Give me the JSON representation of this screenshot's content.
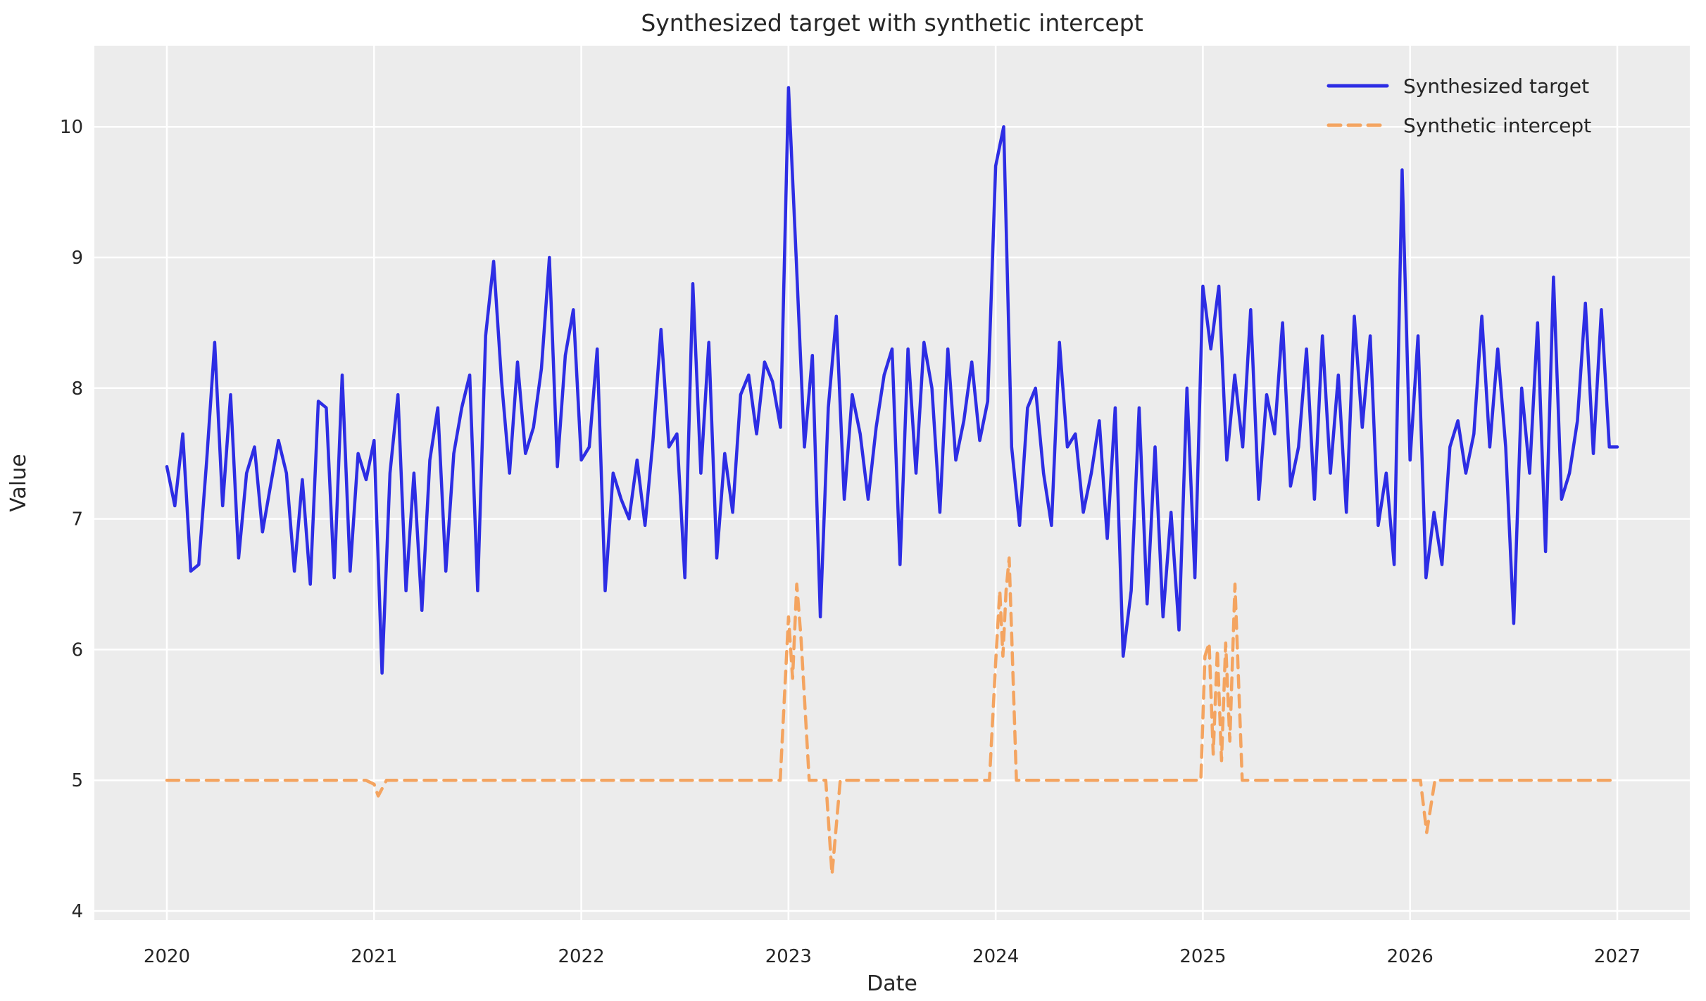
{
  "chart_data": {
    "type": "line",
    "title": "Synthesized target with synthetic intercept",
    "xlabel": "Date",
    "ylabel": "Value",
    "xlim": [
      2019.65,
      2027.35
    ],
    "ylim": [
      3.93,
      10.62
    ],
    "xticks": [
      2020,
      2021,
      2022,
      2023,
      2024,
      2025,
      2026,
      2027
    ],
    "yticks": [
      4,
      5,
      6,
      7,
      8,
      9,
      10
    ],
    "grid": true,
    "legend_position": "upper right",
    "colors": {
      "axes_background": "#ececec",
      "figure_background": "#ffffff",
      "gridline": "#ffffff",
      "text": "#262626",
      "target_line": "#2d2de4",
      "intercept_line": "#f4a460"
    },
    "series": [
      {
        "name": "Synthesized target",
        "style": "solid",
        "color": "#2d2de4",
        "x_start": 2020.0,
        "x_step": 0.0384615,
        "values": [
          7.4,
          7.1,
          7.65,
          6.6,
          6.65,
          7.45,
          8.35,
          7.1,
          7.95,
          6.7,
          7.35,
          7.55,
          6.9,
          7.25,
          7.6,
          7.35,
          6.6,
          7.3,
          6.5,
          7.9,
          7.85,
          6.55,
          8.1,
          6.6,
          7.5,
          7.3,
          7.6,
          5.82,
          7.35,
          7.95,
          6.45,
          7.35,
          6.3,
          7.45,
          7.85,
          6.6,
          7.5,
          7.85,
          8.1,
          6.45,
          8.4,
          8.97,
          8.05,
          7.35,
          8.2,
          7.5,
          7.7,
          8.15,
          9.0,
          7.4,
          8.25,
          8.6,
          7.45,
          7.55,
          8.3,
          6.45,
          7.35,
          7.15,
          7.0,
          7.45,
          6.95,
          7.6,
          8.45,
          7.55,
          7.65,
          6.55,
          8.8,
          7.35,
          8.35,
          6.7,
          7.5,
          7.05,
          7.95,
          8.1,
          7.65,
          8.2,
          8.05,
          7.7,
          10.3,
          8.95,
          7.55,
          8.25,
          6.25,
          7.85,
          8.55,
          7.15,
          7.95,
          7.65,
          7.15,
          7.7,
          8.1,
          8.3,
          6.65,
          8.3,
          7.35,
          8.35,
          8.0,
          7.05,
          8.3,
          7.45,
          7.75,
          8.2,
          7.6,
          7.9,
          9.7,
          10.0,
          7.55,
          6.95,
          7.85,
          8.0,
          7.35,
          6.95,
          8.35,
          7.55,
          7.65,
          7.05,
          7.35,
          7.75,
          6.85,
          7.85,
          5.95,
          6.45,
          7.85,
          6.35,
          7.55,
          6.25,
          7.05,
          6.15,
          8.0,
          6.55,
          8.78,
          8.3,
          8.78,
          7.45,
          8.1,
          7.55,
          8.6,
          7.15,
          7.95,
          7.65,
          8.5,
          7.25,
          7.55,
          8.3,
          7.15,
          8.4,
          7.35,
          8.1,
          7.05,
          8.55,
          7.7,
          8.4,
          6.95,
          7.35,
          6.65,
          9.67,
          7.45,
          8.4,
          6.55,
          7.05,
          6.65,
          7.55,
          7.75,
          7.35,
          7.65,
          8.55,
          7.55,
          8.3,
          7.55,
          6.2,
          8.0,
          7.35,
          8.5,
          6.75,
          8.85,
          7.15,
          7.35,
          7.75,
          8.65,
          7.5,
          8.6,
          7.55,
          7.55
        ]
      },
      {
        "name": "Synthetic intercept",
        "style": "dashed",
        "color": "#f4a460",
        "points": [
          [
            2020.0,
            5.0
          ],
          [
            2020.5,
            5.0
          ],
          [
            2020.96,
            5.0
          ],
          [
            2021.0,
            4.97
          ],
          [
            2021.02,
            4.88
          ],
          [
            2021.06,
            5.0
          ],
          [
            2021.5,
            5.0
          ],
          [
            2022.0,
            5.0
          ],
          [
            2022.5,
            5.0
          ],
          [
            2022.96,
            5.0
          ],
          [
            2023.0,
            6.25
          ],
          [
            2023.02,
            5.78
          ],
          [
            2023.04,
            6.5
          ],
          [
            2023.06,
            6.1
          ],
          [
            2023.1,
            5.0
          ],
          [
            2023.18,
            5.0
          ],
          [
            2023.21,
            4.28
          ],
          [
            2023.25,
            5.0
          ],
          [
            2023.6,
            5.0
          ],
          [
            2023.97,
            5.0
          ],
          [
            2024.0,
            5.9
          ],
          [
            2024.02,
            6.45
          ],
          [
            2024.035,
            5.95
          ],
          [
            2024.05,
            6.45
          ],
          [
            2024.065,
            6.7
          ],
          [
            2024.1,
            5.0
          ],
          [
            2024.5,
            5.0
          ],
          [
            2024.99,
            5.0
          ],
          [
            2025.01,
            5.95
          ],
          [
            2025.03,
            6.05
          ],
          [
            2025.05,
            5.2
          ],
          [
            2025.07,
            6.0
          ],
          [
            2025.09,
            5.15
          ],
          [
            2025.11,
            6.05
          ],
          [
            2025.13,
            5.3
          ],
          [
            2025.155,
            6.5
          ],
          [
            2025.19,
            5.0
          ],
          [
            2025.6,
            5.0
          ],
          [
            2026.05,
            5.0
          ],
          [
            2026.08,
            4.6
          ],
          [
            2026.12,
            5.0
          ],
          [
            2026.6,
            5.0
          ],
          [
            2027.0,
            5.0
          ]
        ]
      }
    ]
  }
}
